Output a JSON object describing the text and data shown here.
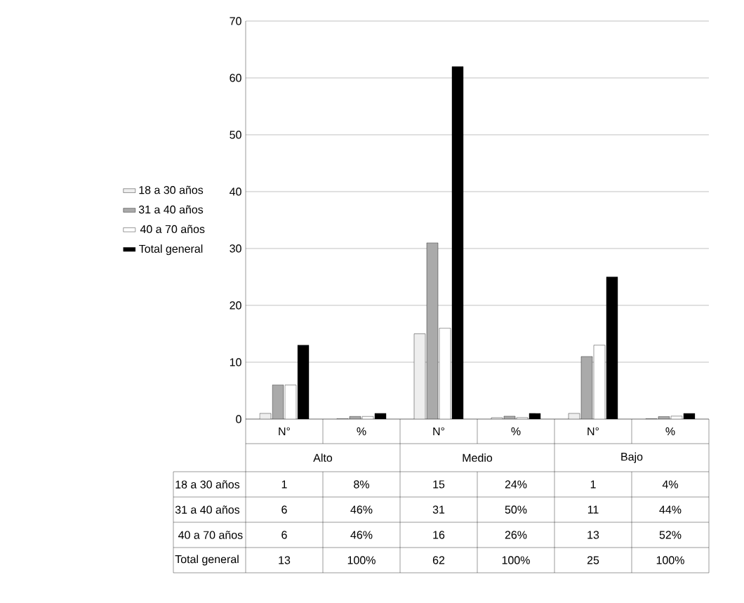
{
  "chart_data": {
    "type": "bar",
    "categories": [
      "N°",
      "%",
      "N°",
      "%",
      "N°",
      "%"
    ],
    "series": [
      {
        "name": "18 a 30 años",
        "color": "#eeeeee",
        "values": [
          1,
          0.08,
          15,
          0.24,
          1,
          0.04
        ],
        "value_labels": [
          "1",
          "8%",
          "15",
          "24%",
          "1",
          "4%"
        ]
      },
      {
        "name": "31 a 40 años",
        "color": "#aaaaaa",
        "values": [
          6,
          0.46,
          31,
          0.5,
          11,
          0.44
        ],
        "value_labels": [
          "6",
          "46%",
          "31",
          "50%",
          "11",
          "44%"
        ]
      },
      {
        "name": " 40 a 70 años",
        "color": "#ffffff",
        "values": [
          6,
          0.46,
          16,
          0.26,
          13,
          0.52
        ],
        "value_labels": [
          "6",
          "46%",
          "16",
          "26%",
          "13",
          "52%"
        ]
      },
      {
        "name": "Total general",
        "color": "#000000",
        "values": [
          13,
          1,
          62,
          1,
          25,
          1
        ],
        "value_labels": [
          "13",
          "100%",
          "62",
          "100%",
          "25",
          "100%"
        ]
      }
    ],
    "annotations": [
      "Alto",
      "Medio",
      "Bajo"
    ],
    "ylim": [
      0,
      70
    ],
    "yticks": [
      0,
      10,
      20,
      30,
      40,
      50,
      60,
      70
    ],
    "grid": "y",
    "legend": "left"
  }
}
